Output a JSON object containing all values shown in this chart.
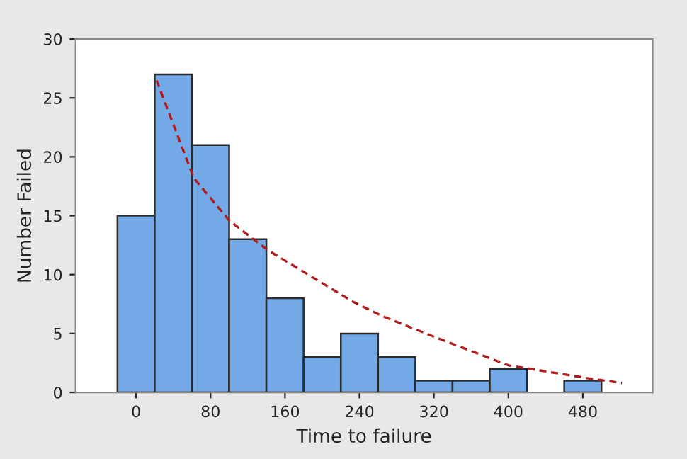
{
  "chart_data": {
    "type": "histogram",
    "xlabel": "Time to failure",
    "ylabel": "Number Failed",
    "bins": [
      -20,
      20,
      60,
      100,
      140,
      180,
      220,
      260,
      300,
      340,
      380,
      420,
      460,
      500
    ],
    "values": [
      15,
      27,
      21,
      13,
      8,
      3,
      5,
      3,
      1,
      1,
      2,
      0,
      1
    ],
    "color": "#72a9e6",
    "series": [
      {
        "type": "line",
        "color": "#b01c1c",
        "line_style": "dashed",
        "x": [
          22,
          62,
          100,
          141,
          233,
          264,
          321,
          400,
          486,
          522
        ],
        "values": [
          26.5,
          18.2,
          14.6,
          12.1,
          7.7,
          6.5,
          4.7,
          2.3,
          1.2,
          0.8
        ]
      }
    ],
    "xlim": [
      -65,
      555
    ],
    "xticks": [
      0,
      80,
      160,
      240,
      320,
      400,
      480
    ],
    "ylim": [
      0,
      30
    ],
    "yticks": [
      0,
      5,
      10,
      15,
      20,
      25,
      30
    ],
    "grid": false
  }
}
